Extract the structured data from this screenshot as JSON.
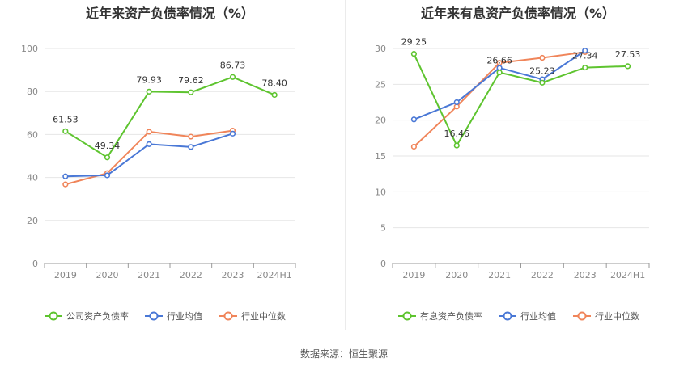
{
  "colors": {
    "green": "#5ec42f",
    "blue": "#4a78d6",
    "orange": "#f0855a",
    "grid": "#e6e6e6",
    "axis": "#999999"
  },
  "source": "数据来源：恒生聚源",
  "chart_data": [
    {
      "type": "line",
      "title": "近年来资产负债率情况（%）",
      "categories": [
        "2019",
        "2020",
        "2021",
        "2022",
        "2023",
        "2024H1"
      ],
      "ylim": [
        0,
        100
      ],
      "yticks": [
        0,
        20,
        40,
        60,
        80,
        100
      ],
      "grid": true,
      "legend_position": "bottom",
      "series": [
        {
          "name": "公司资产负债率",
          "color": "green",
          "values": [
            61.53,
            49.34,
            79.93,
            79.62,
            86.73,
            78.4
          ],
          "labels": [
            "61.53",
            "49.34",
            "79.93",
            "79.62",
            "86.73",
            "78.40"
          ]
        },
        {
          "name": "行业均值",
          "color": "blue",
          "values": [
            40.5,
            41.0,
            55.5,
            54.2,
            60.4,
            null
          ]
        },
        {
          "name": "行业中位数",
          "color": "orange",
          "values": [
            36.8,
            42.0,
            61.3,
            59.0,
            61.8,
            null
          ]
        }
      ]
    },
    {
      "type": "line",
      "title": "近年来有息资产负债率情况（%）",
      "categories": [
        "2019",
        "2020",
        "2021",
        "2022",
        "2023",
        "2024H1"
      ],
      "ylim": [
        0,
        30
      ],
      "yticks": [
        0,
        5,
        10,
        15,
        20,
        25,
        30
      ],
      "grid": true,
      "legend_position": "bottom",
      "series": [
        {
          "name": "有息资产负债率",
          "color": "green",
          "values": [
            29.25,
            16.46,
            26.66,
            25.23,
            27.34,
            27.53
          ],
          "labels": [
            "29.25",
            "16.46",
            "26.66",
            "25.23",
            "27.34",
            "27.53"
          ]
        },
        {
          "name": "行业均值",
          "color": "blue",
          "values": [
            20.1,
            22.5,
            27.3,
            25.7,
            29.7,
            null
          ]
        },
        {
          "name": "行业中位数",
          "color": "orange",
          "values": [
            16.3,
            21.9,
            28.0,
            28.7,
            29.5,
            null
          ]
        }
      ]
    }
  ]
}
